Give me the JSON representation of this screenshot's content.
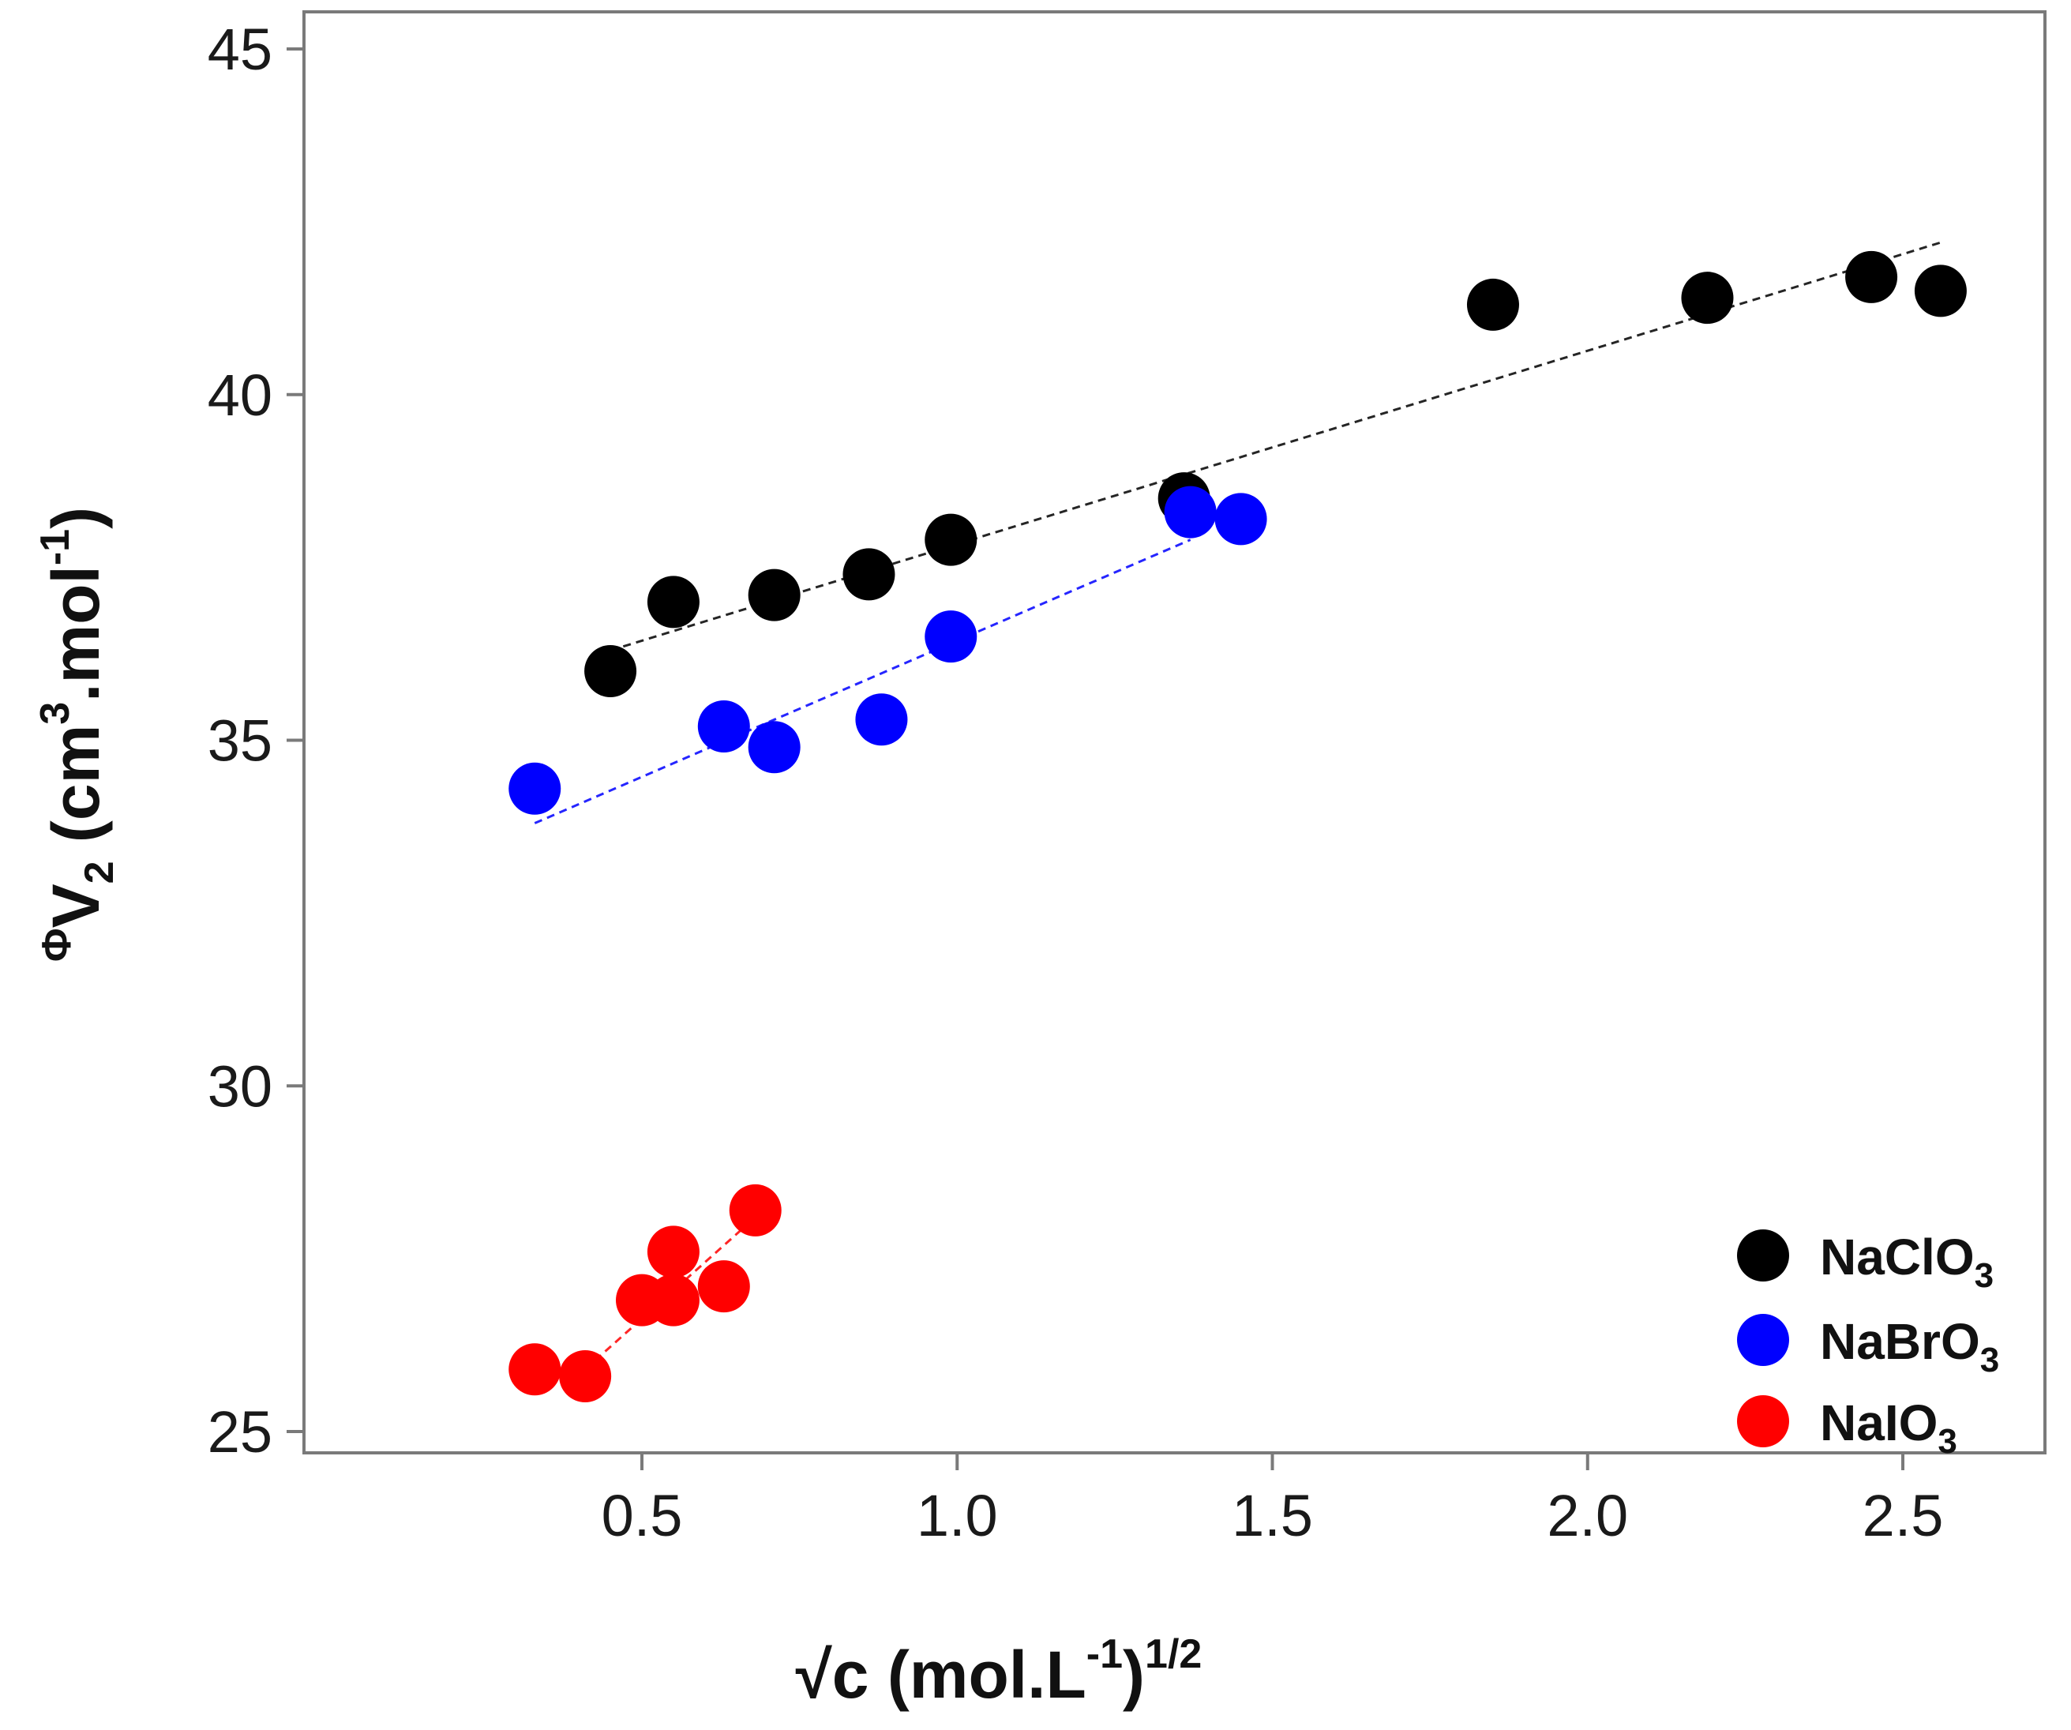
{
  "chart_data": {
    "type": "scatter",
    "title": "",
    "xlabel": {
      "main": "√c (mol.L",
      "sup1": "-1",
      "mid": ")",
      "sup2": "1/2"
    },
    "ylabel": {
      "prefix": "Φ",
      "main": "V",
      "sub": "2",
      "unit": " (cm",
      "sup1": "3",
      "mid": ".mol",
      "sup2": "-1",
      "end": ")"
    },
    "xlim": [
      0,
      2.75
    ],
    "ylim": [
      25,
      45
    ],
    "xticks": [
      0.5,
      1.0,
      1.5,
      2.0,
      2.5
    ],
    "xtick_labels": [
      "0.5",
      "1.0",
      "1.5",
      "2.0",
      "2.5"
    ],
    "yticks": [
      25,
      30,
      35,
      40,
      45
    ],
    "ytick_labels": [
      "25",
      "30",
      "35",
      "40",
      "45"
    ],
    "legend_position": "bottom-right",
    "series": [
      {
        "name": "NaClO",
        "name_sub": "3",
        "color": "#000000",
        "x": [
          0.45,
          0.55,
          0.71,
          0.86,
          0.99,
          1.36,
          1.85,
          2.19,
          2.45,
          2.56
        ],
        "y": [
          36.0,
          37.0,
          37.1,
          37.4,
          37.9,
          38.5,
          41.3,
          41.4,
          41.7,
          41.5
        ],
        "fit": {
          "x": [
            0.45,
            2.56
          ],
          "y": [
            36.3,
            42.2
          ]
        }
      },
      {
        "name": "NaBrO",
        "name_sub": "3",
        "color": "#0000ff",
        "x": [
          0.33,
          0.63,
          0.71,
          0.88,
          0.99,
          1.37,
          1.45
        ],
        "y": [
          34.3,
          35.2,
          34.9,
          35.3,
          36.5,
          38.3,
          38.2
        ],
        "fit": {
          "x": [
            0.33,
            1.37
          ],
          "y": [
            33.8,
            37.9
          ]
        }
      },
      {
        "name": "NaIO",
        "name_sub": "3",
        "color": "#ff0000",
        "x": [
          0.33,
          0.41,
          0.5,
          0.55,
          0.55,
          0.63,
          0.68
        ],
        "y": [
          25.9,
          25.8,
          26.9,
          27.6,
          26.9,
          27.1,
          28.2
        ],
        "fit": {
          "x": [
            0.41,
            0.68
          ],
          "y": [
            25.9,
            28.1
          ]
        }
      }
    ]
  }
}
